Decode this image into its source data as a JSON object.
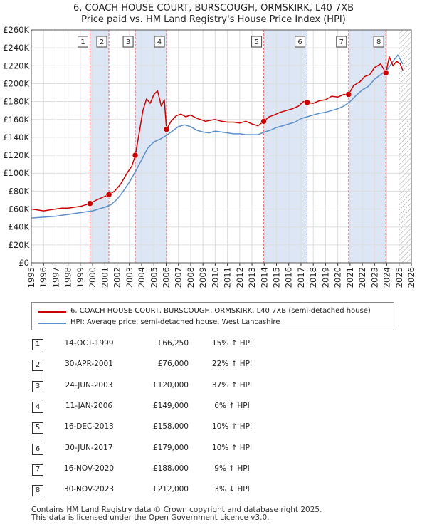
{
  "title_line1": "6, COACH HOUSE COURT, BURSCOUGH, ORMSKIRK, L40 7XB",
  "title_line2": "Price paid vs. HM Land Registry's House Price Index (HPI)",
  "colors": {
    "property": "#cc0000",
    "hpi": "#5b8fcc",
    "shade": "#dde6f5",
    "marker_line": "#e06666"
  },
  "chart_data": {
    "type": "line",
    "title": "6, COACH HOUSE COURT, BURSCOUGH, ORMSKIRK, L40 7XB",
    "subtitle": "Price paid vs. HM Land Registry's House Price Index (HPI)",
    "xlim": [
      1995,
      2026
    ],
    "ylim": [
      0,
      260000
    ],
    "x_ticks": [
      "1995",
      "1996",
      "1997",
      "1998",
      "1999",
      "2000",
      "2001",
      "2002",
      "2003",
      "2004",
      "2005",
      "2006",
      "2007",
      "2008",
      "2009",
      "2010",
      "2011",
      "2012",
      "2013",
      "2014",
      "2015",
      "2016",
      "2017",
      "2018",
      "2019",
      "2020",
      "2021",
      "2022",
      "2023",
      "2024",
      "2025",
      "2026"
    ],
    "y_ticks": [
      "£0",
      "£20K",
      "£40K",
      "£60K",
      "£80K",
      "£100K",
      "£120K",
      "£140K",
      "£160K",
      "£180K",
      "£200K",
      "£220K",
      "£240K",
      "£260K"
    ],
    "grid": true,
    "shaded_periods": [
      [
        1999.79,
        2001.33
      ],
      [
        2003.48,
        2006.03
      ],
      [
        2013.96,
        2017.5
      ],
      [
        2020.88,
        2023.92
      ]
    ],
    "future_hatch_from": 2025.0,
    "series": [
      {
        "name": "6, COACH HOUSE COURT, BURSCOUGH, ORMSKIRK, L40 7XB (semi-detached house)",
        "color": "#cc0000",
        "x": [
          1995.0,
          1995.5,
          1996.0,
          1996.5,
          1997.0,
          1997.5,
          1998.0,
          1998.5,
          1999.0,
          1999.5,
          1999.79,
          2000.3,
          2000.8,
          2001.33,
          2001.8,
          2002.3,
          2002.8,
          2003.2,
          2003.48,
          2003.8,
          2004.1,
          2004.4,
          2004.7,
          2005.0,
          2005.3,
          2005.6,
          2005.85,
          2006.03,
          2006.4,
          2006.8,
          2007.2,
          2007.6,
          2008.0,
          2008.4,
          2008.8,
          2009.2,
          2009.6,
          2010.0,
          2010.5,
          2011.0,
          2011.5,
          2012.0,
          2012.5,
          2013.0,
          2013.5,
          2013.96,
          2014.4,
          2014.8,
          2015.3,
          2015.8,
          2016.3,
          2016.8,
          2017.2,
          2017.5,
          2018.0,
          2018.5,
          2019.0,
          2019.5,
          2020.0,
          2020.5,
          2020.88,
          2021.3,
          2021.8,
          2022.2,
          2022.6,
          2023.0,
          2023.5,
          2023.92,
          2024.2,
          2024.5,
          2024.8,
          2025.1,
          2025.3
        ],
        "y": [
          60000,
          59000,
          58000,
          59000,
          60000,
          61000,
          61000,
          62000,
          63000,
          65000,
          66250,
          70000,
          73000,
          76000,
          80000,
          88000,
          100000,
          108000,
          120000,
          145000,
          170000,
          183000,
          178000,
          188000,
          192000,
          175000,
          182000,
          149000,
          158000,
          164000,
          166000,
          163000,
          165000,
          162000,
          160000,
          158000,
          159000,
          160000,
          158000,
          157000,
          157000,
          156000,
          158000,
          155000,
          153000,
          158000,
          163000,
          165000,
          168000,
          170000,
          172000,
          175000,
          180000,
          179000,
          178000,
          181000,
          182000,
          186000,
          185000,
          188000,
          188000,
          198000,
          202000,
          208000,
          210000,
          218000,
          222000,
          212000,
          230000,
          220000,
          225000,
          222000,
          215000
        ]
      },
      {
        "name": "HPI: Average price, semi-detached house, West Lancashire",
        "color": "#5b8fcc",
        "x": [
          1995.0,
          1995.5,
          1996.0,
          1996.5,
          1997.0,
          1997.5,
          1998.0,
          1998.5,
          1999.0,
          1999.5,
          2000.0,
          2000.5,
          2001.0,
          2001.5,
          2002.0,
          2002.5,
          2003.0,
          2003.5,
          2004.0,
          2004.5,
          2005.0,
          2005.5,
          2006.0,
          2006.5,
          2007.0,
          2007.5,
          2008.0,
          2008.5,
          2009.0,
          2009.5,
          2010.0,
          2010.5,
          2011.0,
          2011.5,
          2012.0,
          2012.5,
          2013.0,
          2013.5,
          2014.0,
          2014.5,
          2015.0,
          2015.5,
          2016.0,
          2016.5,
          2017.0,
          2017.5,
          2018.0,
          2018.5,
          2019.0,
          2019.5,
          2020.0,
          2020.5,
          2021.0,
          2021.5,
          2022.0,
          2022.5,
          2023.0,
          2023.5,
          2024.0,
          2024.5,
          2024.9,
          2025.3
        ],
        "y": [
          50000,
          50500,
          51000,
          51500,
          52000,
          53000,
          54000,
          55000,
          56000,
          57000,
          58000,
          60000,
          62000,
          65000,
          71000,
          80000,
          90000,
          102000,
          115000,
          128000,
          135000,
          138000,
          142000,
          147000,
          152000,
          154000,
          152000,
          148000,
          146000,
          145000,
          147000,
          146000,
          145000,
          144000,
          144000,
          143000,
          143000,
          143000,
          146000,
          148000,
          151000,
          153000,
          155000,
          157000,
          161000,
          163000,
          165000,
          167000,
          168000,
          170000,
          172000,
          175000,
          180000,
          187000,
          193000,
          197000,
          205000,
          210000,
          215000,
          225000,
          232000,
          222000
        ]
      }
    ],
    "sales": [
      {
        "label": "1",
        "x": 1999.79,
        "y": 66250
      },
      {
        "label": "2",
        "x": 2001.33,
        "y": 76000
      },
      {
        "label": "3",
        "x": 2003.48,
        "y": 120000
      },
      {
        "label": "4",
        "x": 2006.03,
        "y": 149000
      },
      {
        "label": "5",
        "x": 2013.96,
        "y": 158000
      },
      {
        "label": "6",
        "x": 2017.5,
        "y": 179000
      },
      {
        "label": "7",
        "x": 2020.88,
        "y": 188000
      },
      {
        "label": "8",
        "x": 2023.92,
        "y": 212000
      }
    ]
  },
  "legend": {
    "property_label": "6, COACH HOUSE COURT, BURSCOUGH, ORMSKIRK, L40 7XB (semi-detached house)",
    "hpi_label": "HPI: Average price, semi-detached house, West Lancashire"
  },
  "transactions": [
    {
      "num": "1",
      "date": "14-OCT-1999",
      "price": "£66,250",
      "hpi": "15% ↑ HPI"
    },
    {
      "num": "2",
      "date": "30-APR-2001",
      "price": "£76,000",
      "hpi": "22% ↑ HPI"
    },
    {
      "num": "3",
      "date": "24-JUN-2003",
      "price": "£120,000",
      "hpi": "37% ↑ HPI"
    },
    {
      "num": "4",
      "date": "11-JAN-2006",
      "price": "£149,000",
      "hpi": "6% ↑ HPI"
    },
    {
      "num": "5",
      "date": "16-DEC-2013",
      "price": "£158,000",
      "hpi": "10% ↑ HPI"
    },
    {
      "num": "6",
      "date": "30-JUN-2017",
      "price": "£179,000",
      "hpi": "10% ↑ HPI"
    },
    {
      "num": "7",
      "date": "16-NOV-2020",
      "price": "£188,000",
      "hpi": "9% ↑ HPI"
    },
    {
      "num": "8",
      "date": "30-NOV-2023",
      "price": "£212,000",
      "hpi": "3% ↓ HPI"
    }
  ],
  "footer_line1": "Contains HM Land Registry data © Crown copyright and database right 2025.",
  "footer_line2": "This data is licensed under the Open Government Licence v3.0."
}
